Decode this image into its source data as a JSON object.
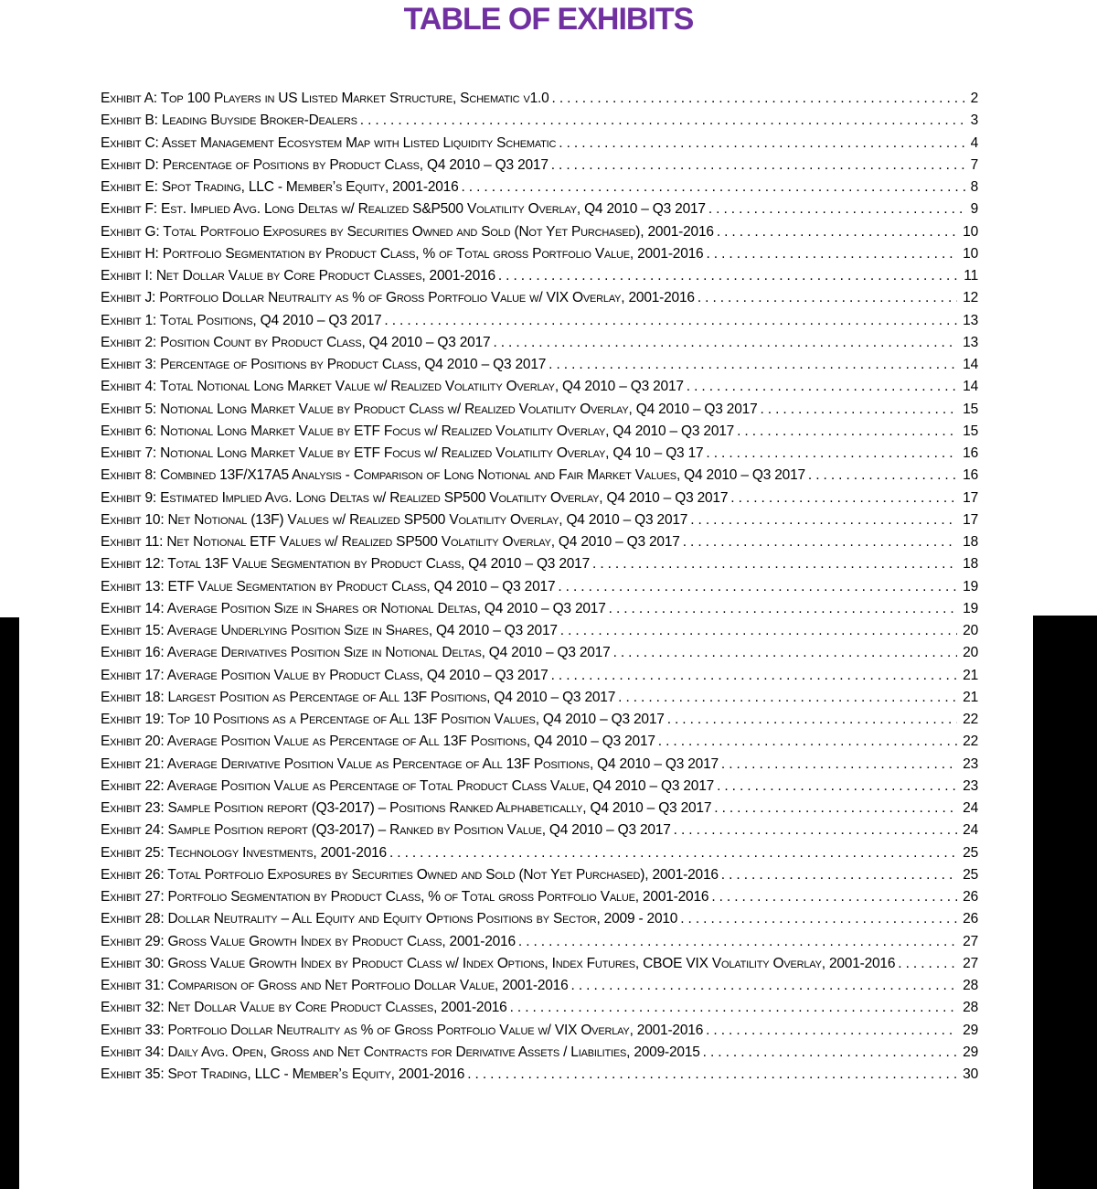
{
  "page": {
    "title": "TABLE OF EXHIBITS"
  },
  "colors": {
    "title": "#7030A0",
    "body_text": "#000000",
    "edge_bars": "#000000",
    "background": "#FFFFFF"
  },
  "toc": {
    "entries": [
      {
        "label": "Exhibit A: Top 100 Players in US Listed Market Structure, Schematic v1.0",
        "page": "2"
      },
      {
        "label": "Exhibit B: Leading Buyside Broker-Dealers",
        "page": "3"
      },
      {
        "label": "Exhibit C: Asset Management Ecosystem Map with Listed Liquidity Schematic",
        "page": "4"
      },
      {
        "label": "Exhibit D: Percentage of Positions by Product Class, Q4 2010 – Q3 2017",
        "page": "7"
      },
      {
        "label": "Exhibit E: Spot Trading, LLC - Member’s Equity, 2001-2016",
        "page": "8"
      },
      {
        "label": "Exhibit F: Est. Implied Avg. Long Deltas w/ Realized S&P500 Volatility Overlay, Q4 2010 – Q3 2017",
        "page": "9"
      },
      {
        "label": "Exhibit G: Total Portfolio Exposures by Securities Owned and Sold (Not Yet Purchased), 2001-2016",
        "page": "10"
      },
      {
        "label": "Exhibit H: Portfolio Segmentation by Product Class, % of Total gross Portfolio Value, 2001-2016",
        "page": "10"
      },
      {
        "label": "Exhibit I: Net Dollar Value by Core Product Classes, 2001-2016",
        "page": "11"
      },
      {
        "label": "Exhibit J: Portfolio Dollar Neutrality as % of Gross Portfolio Value w/ VIX Overlay, 2001-2016",
        "page": "12"
      },
      {
        "label": "Exhibit 1: Total Positions, Q4 2010 – Q3 2017",
        "page": "13"
      },
      {
        "label": "Exhibit 2: Position Count by Product Class, Q4 2010 – Q3 2017",
        "page": "13"
      },
      {
        "label": "Exhibit 3: Percentage of Positions by Product Class, Q4 2010 – Q3 2017",
        "page": "14"
      },
      {
        "label": "Exhibit 4: Total Notional Long Market Value w/ Realized Volatility Overlay, Q4 2010 – Q3 2017",
        "page": "14"
      },
      {
        "label": "Exhibit 5: Notional Long Market Value by Product Class w/ Realized Volatility Overlay, Q4 2010 – Q3 2017",
        "page": "15"
      },
      {
        "label": "Exhibit 6: Notional Long Market Value by ETF Focus w/ Realized Volatility Overlay, Q4 2010 – Q3 2017",
        "page": "15"
      },
      {
        "label": "Exhibit 7: Notional Long Market Value by ETF Focus w/ Realized Volatility Overlay, Q4 10 – Q3 17",
        "page": "16"
      },
      {
        "label": "Exhibit 8: Combined 13F/X17A5 Analysis - Comparison of Long Notional and Fair Market Values, Q4 2010 – Q3 2017",
        "page": "16"
      },
      {
        "label": "Exhibit 9: Estimated Implied Avg. Long Deltas w/ Realized SP500 Volatility Overlay, Q4 2010 – Q3 2017",
        "page": "17"
      },
      {
        "label": "Exhibit 10: Net Notional (13F) Values w/ Realized SP500 Volatility Overlay, Q4 2010 – Q3 2017",
        "page": "17"
      },
      {
        "label": "Exhibit 11: Net Notional ETF Values w/ Realized SP500 Volatility Overlay, Q4 2010 – Q3 2017",
        "page": "18"
      },
      {
        "label": "Exhibit 12: Total 13F Value Segmentation by Product Class, Q4 2010 – Q3 2017",
        "page": "18"
      },
      {
        "label": "Exhibit 13: ETF Value Segmentation by Product Class, Q4 2010 – Q3 2017",
        "page": "19"
      },
      {
        "label": "Exhibit 14: Average Position Size in Shares or Notional Deltas, Q4 2010 – Q3 2017",
        "page": "19"
      },
      {
        "label": "Exhibit 15: Average Underlying Position Size in Shares, Q4 2010 – Q3 2017",
        "page": "20"
      },
      {
        "label": "Exhibit 16: Average Derivatives Position Size in Notional Deltas, Q4 2010 – Q3 2017",
        "page": "20"
      },
      {
        "label": "Exhibit 17: Average Position Value by Product Class, Q4 2010 – Q3 2017",
        "page": "21"
      },
      {
        "label": "Exhibit 18: Largest Position as Percentage of All 13F Positions, Q4 2010 – Q3 2017",
        "page": "21"
      },
      {
        "label": "Exhibit 19: Top 10 Positions as a Percentage of All 13F Position Values, Q4 2010 – Q3 2017",
        "page": "22"
      },
      {
        "label": "Exhibit 20: Average Position Value as Percentage of All 13F Positions, Q4 2010 – Q3 2017",
        "page": "22"
      },
      {
        "label": "Exhibit 21: Average Derivative Position Value as Percentage of All 13F Positions, Q4 2010 – Q3 2017",
        "page": "23"
      },
      {
        "label": "Exhibit 22: Average Position Value as Percentage of Total Product Class Value, Q4 2010 – Q3 2017",
        "page": "23"
      },
      {
        "label": "Exhibit 23: Sample Position report (Q3-2017) – Positions Ranked Alphabetically, Q4 2010 – Q3 2017",
        "page": "24"
      },
      {
        "label": "Exhibit 24: Sample Position report (Q3-2017) – Ranked by Position Value, Q4 2010 – Q3 2017",
        "page": "24"
      },
      {
        "label": "Exhibit 25: Technology Investments, 2001-2016",
        "page": "25"
      },
      {
        "label": "Exhibit 26: Total Portfolio Exposures by Securities Owned and Sold (Not Yet Purchased), 2001-2016",
        "page": "25"
      },
      {
        "label": "Exhibit 27: Portfolio Segmentation by Product Class, % of Total gross Portfolio Value, 2001-2016",
        "page": "26"
      },
      {
        "label": "Exhibit 28: Dollar Neutrality – All Equity and Equity Options Positions by Sector, 2009 - 2010",
        "page": "26"
      },
      {
        "label": "Exhibit 29: Gross Value Growth Index by Product Class, 2001-2016",
        "page": "27"
      },
      {
        "label": "Exhibit 30: Gross Value Growth Index by Product Class w/ Index Options, Index Futures, CBOE VIX Volatility Overlay, 2001-2016",
        "page": "27"
      },
      {
        "label": "Exhibit 31: Comparison of Gross and Net Portfolio Dollar Value, 2001-2016",
        "page": "28"
      },
      {
        "label": "Exhibit 32: Net Dollar Value by Core Product Classes, 2001-2016",
        "page": "28"
      },
      {
        "label": "Exhibit 33: Portfolio Dollar Neutrality as % of Gross Portfolio Value w/ VIX Overlay, 2001-2016",
        "page": "29"
      },
      {
        "label": "Exhibit 34: Daily Avg. Open, Gross and Net Contracts for Derivative Assets / Liabilities, 2009-2015",
        "page": "29"
      },
      {
        "label": "Exhibit 35: Spot Trading, LLC - Member’s Equity, 2001-2016",
        "page": "30"
      }
    ]
  }
}
